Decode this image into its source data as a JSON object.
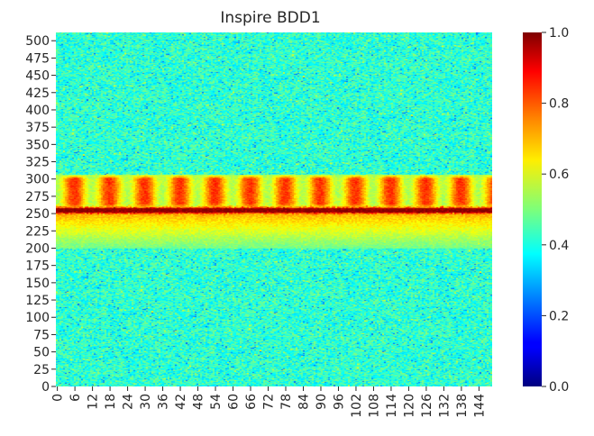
{
  "chart_data": {
    "type": "heatmap",
    "title": "Inspire BDD1",
    "xlabel": "",
    "ylabel": "",
    "x_range": [
      0,
      149
    ],
    "y_range": [
      0,
      512
    ],
    "x_ticks": [
      "0",
      "6",
      "12",
      "18",
      "24",
      "30",
      "36",
      "42",
      "48",
      "54",
      "60",
      "66",
      "72",
      "78",
      "84",
      "90",
      "96",
      "102",
      "108",
      "114",
      "120",
      "126",
      "132",
      "138",
      "144"
    ],
    "y_ticks": [
      "0",
      "25",
      "50",
      "75",
      "100",
      "125",
      "150",
      "175",
      "200",
      "225",
      "250",
      "275",
      "300",
      "325",
      "350",
      "375",
      "400",
      "425",
      "450",
      "475",
      "500"
    ],
    "colormap": "jet",
    "colorbar": {
      "range": [
        0.0,
        1.0
      ],
      "ticks": [
        "0.0",
        "0.2",
        "0.4",
        "0.6",
        "0.8",
        "1.0"
      ]
    },
    "background_level": 0.42,
    "band": {
      "y_center": 255,
      "peak_value": 1.0,
      "upper_lobe_y_range": [
        265,
        305
      ],
      "upper_lobe_value": 0.8,
      "lower_fade_y_range": [
        200,
        250
      ],
      "periodic_cells_period_x": 12
    }
  }
}
